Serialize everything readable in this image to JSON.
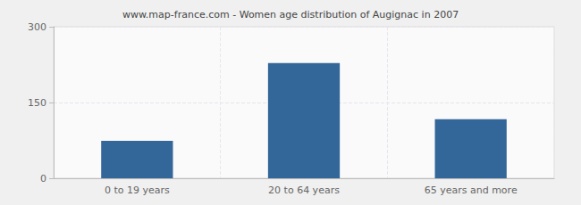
{
  "chart_data": {
    "type": "bar",
    "title": "www.map-france.com - Women age distribution of Augignac in 2007",
    "categories": [
      "0 to 19 years",
      "20 to 64 years",
      "65 years and more"
    ],
    "values": [
      74,
      228,
      117
    ],
    "color": "#336699",
    "ylim": [
      0,
      300
    ],
    "yticks": [
      0,
      150,
      300
    ],
    "grid": true
  }
}
